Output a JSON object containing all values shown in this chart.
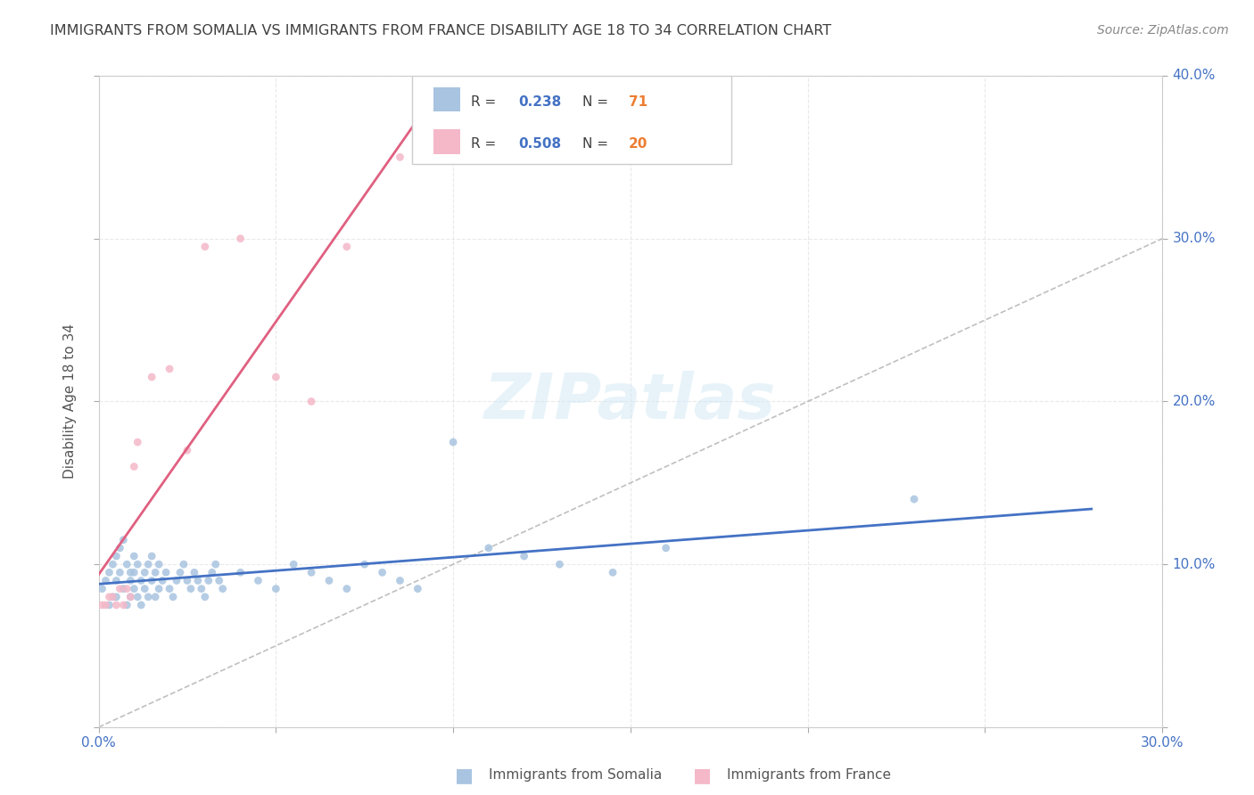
{
  "title": "IMMIGRANTS FROM SOMALIA VS IMMIGRANTS FROM FRANCE DISABILITY AGE 18 TO 34 CORRELATION CHART",
  "source": "Source: ZipAtlas.com",
  "xlabel": "",
  "ylabel": "Disability Age 18 to 34",
  "xlim": [
    0.0,
    0.3
  ],
  "ylim": [
    0.0,
    0.4
  ],
  "xticks": [
    0.0,
    0.05,
    0.1,
    0.15,
    0.2,
    0.25,
    0.3
  ],
  "yticks": [
    0.0,
    0.1,
    0.2,
    0.3,
    0.4
  ],
  "xticklabels": [
    "0.0%",
    "",
    "",
    "",
    "",
    "",
    "30.0%"
  ],
  "yticklabels": [
    "",
    "10.0%",
    "20.0%",
    "30.0%",
    "40.0%"
  ],
  "somalia_color": "#a8c4e0",
  "france_color": "#f4b8c8",
  "somalia_R": 0.238,
  "somalia_N": 71,
  "france_R": 0.508,
  "france_N": 20,
  "somalia_x": [
    0.001,
    0.002,
    0.003,
    0.003,
    0.004,
    0.004,
    0.005,
    0.005,
    0.005,
    0.006,
    0.006,
    0.007,
    0.007,
    0.008,
    0.008,
    0.009,
    0.009,
    0.009,
    0.01,
    0.01,
    0.01,
    0.011,
    0.011,
    0.012,
    0.012,
    0.013,
    0.013,
    0.014,
    0.014,
    0.015,
    0.015,
    0.016,
    0.016,
    0.017,
    0.017,
    0.018,
    0.019,
    0.02,
    0.021,
    0.022,
    0.023,
    0.024,
    0.025,
    0.026,
    0.027,
    0.028,
    0.029,
    0.03,
    0.031,
    0.032,
    0.033,
    0.034,
    0.035,
    0.04,
    0.045,
    0.05,
    0.055,
    0.06,
    0.065,
    0.07,
    0.075,
    0.08,
    0.085,
    0.09,
    0.1,
    0.11,
    0.12,
    0.13,
    0.145,
    0.16,
    0.23
  ],
  "somalia_y": [
    0.085,
    0.09,
    0.095,
    0.075,
    0.1,
    0.08,
    0.105,
    0.09,
    0.08,
    0.11,
    0.095,
    0.115,
    0.085,
    0.1,
    0.075,
    0.095,
    0.09,
    0.08,
    0.105,
    0.085,
    0.095,
    0.1,
    0.08,
    0.09,
    0.075,
    0.095,
    0.085,
    0.1,
    0.08,
    0.105,
    0.09,
    0.095,
    0.08,
    0.1,
    0.085,
    0.09,
    0.095,
    0.085,
    0.08,
    0.09,
    0.095,
    0.1,
    0.09,
    0.085,
    0.095,
    0.09,
    0.085,
    0.08,
    0.09,
    0.095,
    0.1,
    0.09,
    0.085,
    0.095,
    0.09,
    0.085,
    0.1,
    0.095,
    0.09,
    0.085,
    0.1,
    0.095,
    0.09,
    0.085,
    0.175,
    0.11,
    0.105,
    0.1,
    0.095,
    0.11,
    0.14
  ],
  "france_x": [
    0.001,
    0.002,
    0.003,
    0.004,
    0.005,
    0.006,
    0.007,
    0.008,
    0.009,
    0.01,
    0.011,
    0.015,
    0.02,
    0.025,
    0.03,
    0.04,
    0.05,
    0.06,
    0.07,
    0.085
  ],
  "france_y": [
    0.075,
    0.075,
    0.08,
    0.08,
    0.075,
    0.085,
    0.075,
    0.085,
    0.08,
    0.16,
    0.175,
    0.215,
    0.22,
    0.17,
    0.295,
    0.3,
    0.215,
    0.2,
    0.295,
    0.35
  ],
  "watermark": "ZIPatlas",
  "background_color": "#ffffff",
  "grid_color": "#e0e0e0",
  "legend_R_color": "#4472c4",
  "legend_N_color": "#ed7d31",
  "axis_label_color": "#4472c4",
  "title_color": "#404040"
}
